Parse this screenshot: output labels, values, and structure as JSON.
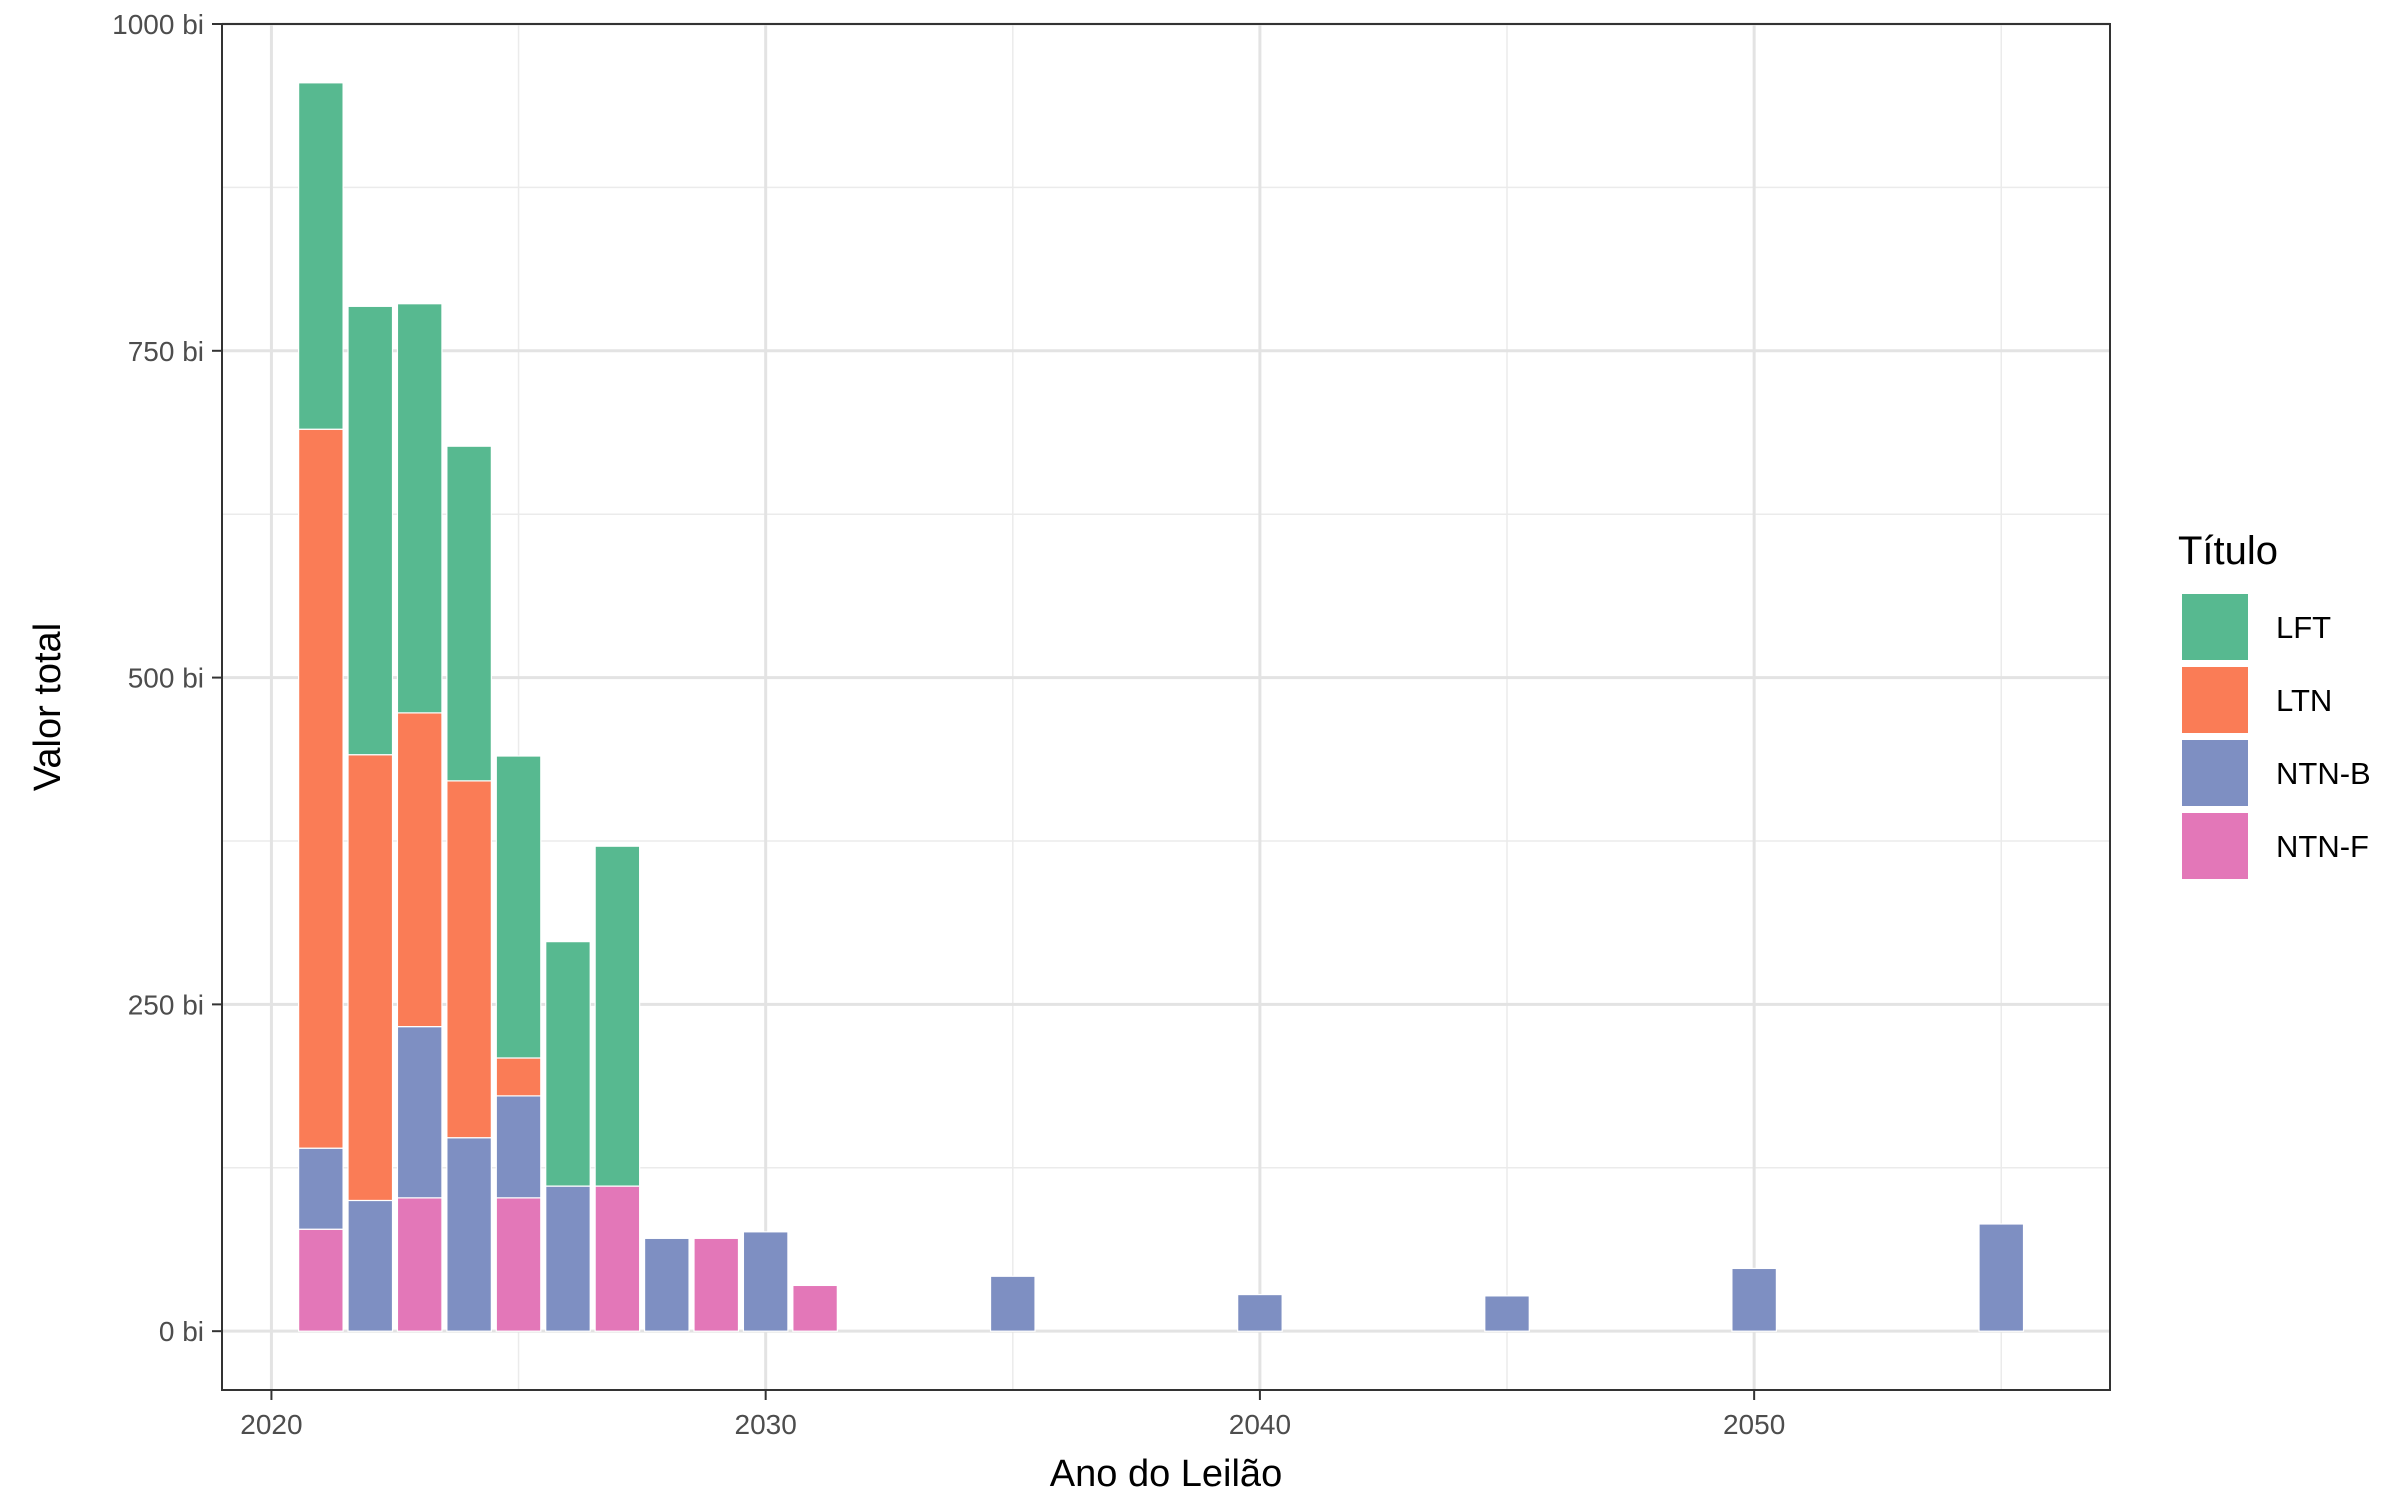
{
  "chart_data": {
    "type": "bar",
    "stacked": true,
    "xlabel": "Ano do Leilão",
    "ylabel": "Valor total",
    "xlim": [
      2019,
      2057.2
    ],
    "ylim": [
      -45,
      1000
    ],
    "x_ticks": [
      2020,
      2030,
      2040,
      2050
    ],
    "y_ticks": [
      0,
      250,
      500,
      750,
      1000
    ],
    "y_tick_labels": [
      "0 bi",
      "250 bi",
      "500 bi",
      "750 bi",
      "1000 bi"
    ],
    "grid": true,
    "legend": {
      "title": "Título",
      "position": "right"
    },
    "series": [
      {
        "name": "NTN-F",
        "color": "#E377B8",
        "points": [
          {
            "x": 2021,
            "y": 78
          },
          {
            "x": 2023,
            "y": 102
          },
          {
            "x": 2025,
            "y": 102
          },
          {
            "x": 2027,
            "y": 111
          },
          {
            "x": 2029,
            "y": 71
          },
          {
            "x": 2031,
            "y": 35
          }
        ]
      },
      {
        "name": "NTN-B",
        "color": "#7E8FC2",
        "points": [
          {
            "x": 2021,
            "y": 62
          },
          {
            "x": 2022,
            "y": 100
          },
          {
            "x": 2023,
            "y": 131
          },
          {
            "x": 2024,
            "y": 148
          },
          {
            "x": 2025,
            "y": 78
          },
          {
            "x": 2026,
            "y": 111
          },
          {
            "x": 2028,
            "y": 71
          },
          {
            "x": 2030,
            "y": 76
          },
          {
            "x": 2035,
            "y": 42
          },
          {
            "x": 2040,
            "y": 28
          },
          {
            "x": 2045,
            "y": 27
          },
          {
            "x": 2050,
            "y": 48
          },
          {
            "x": 2055,
            "y": 82
          }
        ]
      },
      {
        "name": "LTN",
        "color": "#FA7C56",
        "points": [
          {
            "x": 2021,
            "y": 550
          },
          {
            "x": 2022,
            "y": 341
          },
          {
            "x": 2023,
            "y": 240
          },
          {
            "x": 2024,
            "y": 273
          },
          {
            "x": 2025,
            "y": 29
          }
        ]
      },
      {
        "name": "LFT",
        "color": "#57B990",
        "points": [
          {
            "x": 2021,
            "y": 265
          },
          {
            "x": 2022,
            "y": 343
          },
          {
            "x": 2023,
            "y": 313
          },
          {
            "x": 2024,
            "y": 256
          },
          {
            "x": 2025,
            "y": 231
          },
          {
            "x": 2026,
            "y": 187
          },
          {
            "x": 2027,
            "y": 260
          }
        ]
      }
    ],
    "legend_order": [
      "LFT",
      "LTN",
      "NTN-B",
      "NTN-F"
    ]
  }
}
